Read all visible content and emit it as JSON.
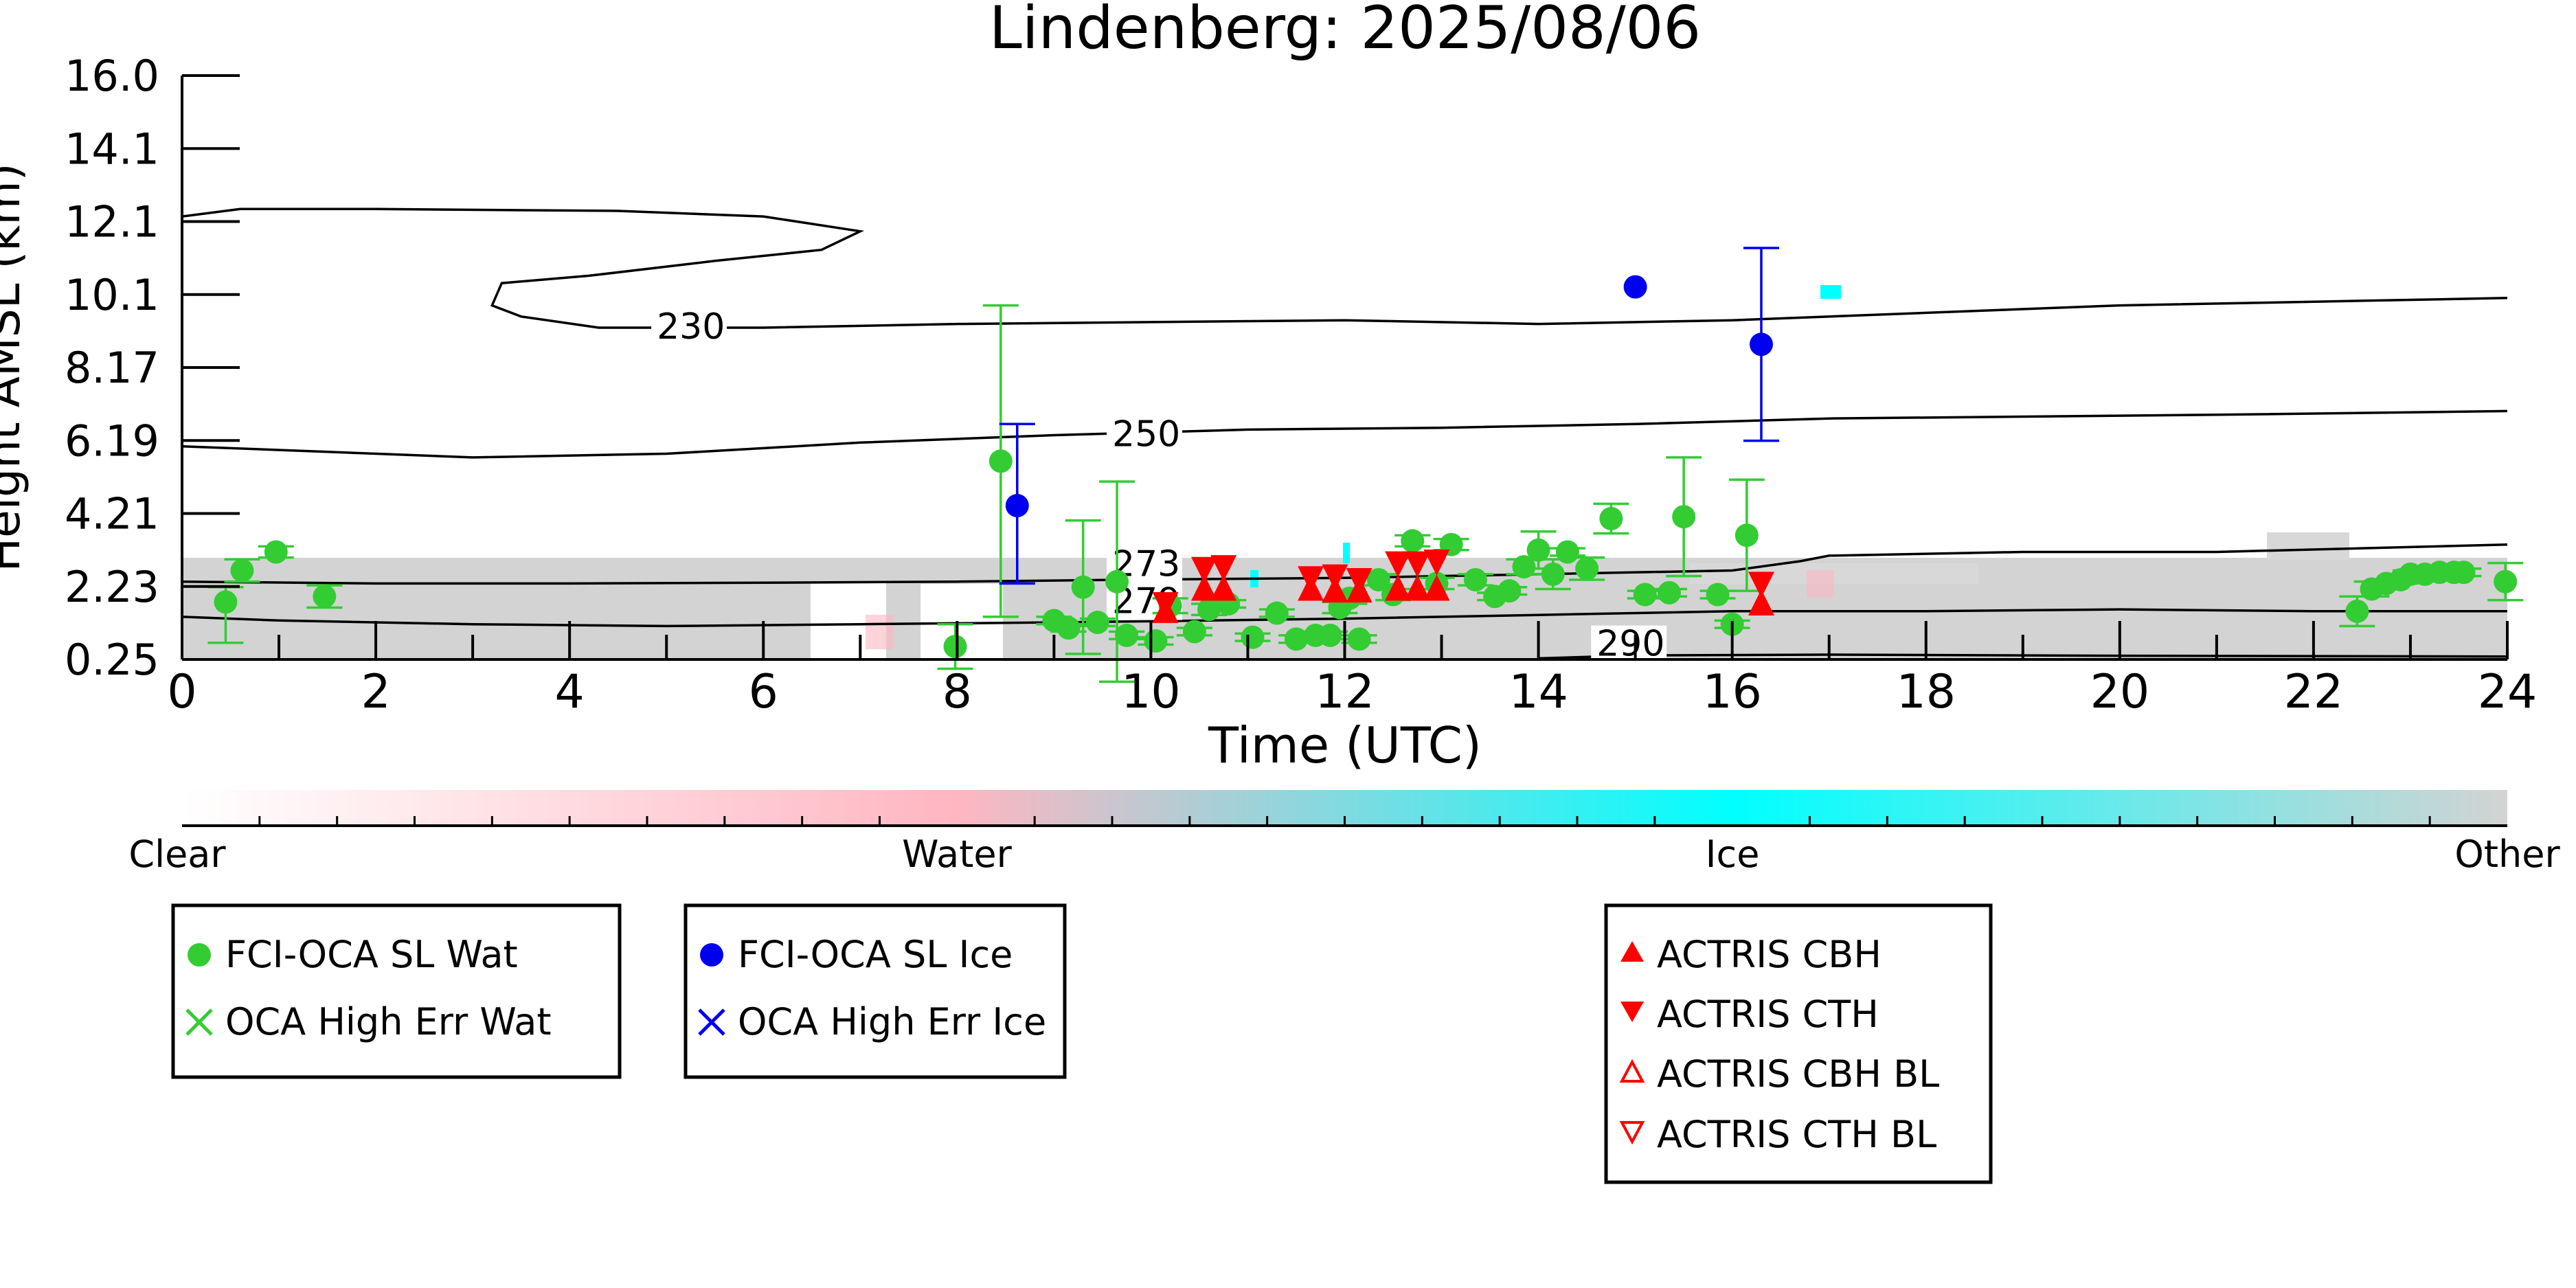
{
  "chart_data": {
    "type": "scatter",
    "title": "Lindenberg: 2025/08/06",
    "xlabel": "Time (UTC)",
    "ylabel": "Height AMSL (km)",
    "xlim": [
      0,
      24
    ],
    "ylim": [
      0.25,
      16.0
    ],
    "x_ticks": [
      "0",
      "2",
      "4",
      "6",
      "8",
      "10",
      "12",
      "14",
      "16",
      "18",
      "20",
      "22",
      "24"
    ],
    "y_ticks": [
      "0.25",
      "2.23",
      "4.21",
      "6.19",
      "8.17",
      "10.1",
      "12.1",
      "14.1",
      "16.0"
    ],
    "colorbar": {
      "labels": [
        "Clear",
        "Water",
        "Ice",
        "Other"
      ],
      "colors": [
        "#ffffff",
        "#ffb6c1",
        "#00ffff",
        "#d3d3d3"
      ]
    },
    "contours": [
      {
        "label": "230",
        "points": [
          [
            0,
            12.2
          ],
          [
            0.6,
            12.4
          ],
          [
            2,
            12.4
          ],
          [
            4.5,
            12.35
          ],
          [
            6,
            12.2
          ],
          [
            7.0,
            11.8
          ],
          [
            6.6,
            11.3
          ],
          [
            5.5,
            11.0
          ],
          [
            4.2,
            10.6
          ],
          [
            3.3,
            10.4
          ],
          [
            3.2,
            9.8
          ],
          [
            3.5,
            9.5
          ],
          [
            4.3,
            9.2
          ],
          [
            6,
            9.2
          ],
          [
            8,
            9.3
          ],
          [
            10,
            9.35
          ],
          [
            12,
            9.4
          ],
          [
            14,
            9.3
          ],
          [
            16,
            9.4
          ],
          [
            18,
            9.6
          ],
          [
            20,
            9.8
          ],
          [
            22,
            9.9
          ],
          [
            24,
            10.0
          ]
        ],
        "label_x": 4.9,
        "label_y": 8.9
      },
      {
        "label": "250",
        "points": [
          [
            0,
            6.0
          ],
          [
            1.5,
            5.85
          ],
          [
            3,
            5.7
          ],
          [
            5,
            5.8
          ],
          [
            7,
            6.1
          ],
          [
            9,
            6.3
          ],
          [
            11,
            6.45
          ],
          [
            13,
            6.5
          ],
          [
            15,
            6.6
          ],
          [
            17,
            6.75
          ],
          [
            19,
            6.8
          ],
          [
            21,
            6.85
          ],
          [
            24,
            6.95
          ]
        ],
        "label_x": 9.6,
        "label_y": 6.0
      },
      {
        "label": "273",
        "points": [
          [
            0,
            2.35
          ],
          [
            2,
            2.3
          ],
          [
            4,
            2.3
          ],
          [
            6,
            2.32
          ],
          [
            8,
            2.35
          ],
          [
            9.7,
            2.4
          ],
          [
            12,
            2.45
          ],
          [
            14,
            2.55
          ],
          [
            16,
            2.65
          ],
          [
            16.7,
            2.9
          ],
          [
            17,
            3.05
          ],
          [
            19,
            3.15
          ],
          [
            21,
            3.15
          ],
          [
            24,
            3.35
          ]
        ],
        "label_x": 9.6,
        "label_y": 2.5
      },
      {
        "label": "279",
        "points": [
          [
            0,
            1.4
          ],
          [
            1,
            1.3
          ],
          [
            3,
            1.2
          ],
          [
            5,
            1.15
          ],
          [
            7,
            1.2
          ],
          [
            9,
            1.25
          ],
          [
            10,
            1.28
          ],
          [
            12,
            1.35
          ],
          [
            14,
            1.45
          ],
          [
            16,
            1.55
          ],
          [
            18,
            1.55
          ],
          [
            20,
            1.6
          ],
          [
            22,
            1.55
          ],
          [
            24,
            1.55
          ]
        ],
        "label_x": 9.6,
        "label_y": 1.5
      },
      {
        "label": "290",
        "points": [
          [
            14.0,
            0.28
          ],
          [
            15.0,
            0.36
          ],
          [
            17,
            0.38
          ],
          [
            20,
            0.35
          ],
          [
            24,
            0.33
          ]
        ],
        "label_x": 14.6,
        "label_y": 0.35
      }
    ],
    "series": [
      {
        "name": "FCI-OCA SL Wat",
        "marker": "circle",
        "color": "#33cc33",
        "x": [
          0.45,
          0.62,
          0.97,
          1.47,
          7.98,
          8.45,
          9.0,
          9.15,
          9.3,
          9.45,
          9.65,
          9.75,
          10.05,
          10.2,
          10.45,
          10.6,
          10.8,
          11.05,
          11.3,
          11.5,
          11.7,
          11.85,
          11.95,
          12.05,
          12.15,
          12.35,
          12.5,
          12.7,
          12.95,
          13.1,
          13.35,
          13.55,
          13.7,
          13.85,
          14.0,
          14.15,
          14.3,
          14.5,
          14.75,
          15.1,
          15.35,
          15.5,
          15.85,
          16.0,
          16.15,
          22.45,
          22.6,
          22.75,
          22.9,
          23.0,
          23.15,
          23.3,
          23.45,
          23.55,
          23.98
        ],
        "y": [
          1.8,
          2.65,
          3.15,
          1.95,
          0.6,
          5.6,
          1.3,
          1.1,
          2.2,
          1.25,
          2.35,
          0.9,
          0.75,
          1.7,
          1.0,
          1.6,
          1.75,
          0.85,
          1.5,
          0.8,
          0.9,
          0.9,
          1.65,
          1.9,
          0.8,
          2.4,
          2.0,
          3.45,
          2.3,
          3.35,
          2.4,
          1.95,
          2.1,
          2.75,
          3.2,
          2.55,
          3.15,
          2.7,
          4.05,
          2.0,
          2.05,
          4.1,
          2.0,
          1.2,
          3.6,
          1.55,
          2.15,
          2.3,
          2.4,
          2.55,
          2.55,
          2.6,
          2.6,
          2.6,
          2.35
        ],
        "yerr": [
          [
            1.1,
            0.4
          ],
          [
            0.3,
            0.3
          ],
          [
            0.15,
            0.15
          ],
          [
            0.3,
            0.3
          ],
          [
            0.6,
            0.6
          ],
          [
            4.2,
            4.2
          ],
          [
            0.1,
            0.1
          ],
          [
            0.1,
            0.1
          ],
          [
            1.8,
            1.8
          ],
          [
            0.1,
            0.1
          ],
          [
            2.7,
            2.7
          ],
          [
            0.1,
            0.1
          ],
          [
            0.1,
            0.1
          ],
          [
            0.2,
            0.2
          ],
          [
            0.1,
            0.1
          ],
          [
            0.15,
            0.15
          ],
          [
            0.1,
            0.1
          ],
          [
            0.1,
            0.1
          ],
          [
            0.1,
            0.1
          ],
          [
            0.1,
            0.1
          ],
          [
            0.1,
            0.1
          ],
          [
            0.1,
            0.1
          ],
          [
            0.15,
            0.15
          ],
          [
            0.15,
            0.15
          ],
          [
            0.1,
            0.1
          ],
          [
            0.15,
            0.15
          ],
          [
            0.15,
            0.15
          ],
          [
            0.15,
            0.15
          ],
          [
            0.15,
            0.15
          ],
          [
            0.15,
            0.15
          ],
          [
            0.15,
            0.15
          ],
          [
            0.1,
            0.1
          ],
          [
            0.1,
            0.1
          ],
          [
            0.2,
            0.2
          ],
          [
            0.5,
            0.5
          ],
          [
            0.4,
            0.4
          ],
          [
            0.1,
            0.1
          ],
          [
            0.3,
            0.3
          ],
          [
            0.4,
            0.4
          ],
          [
            0.1,
            0.1
          ],
          [
            0.1,
            0.1
          ],
          [
            1.6,
            1.6
          ],
          [
            0.1,
            0.1
          ],
          [
            0.1,
            0.1
          ],
          [
            1.5,
            1.5
          ],
          [
            0.4,
            0.4
          ],
          [
            0.2,
            0.2
          ],
          [
            0.1,
            0.1
          ],
          [
            0.1,
            0.1
          ],
          [
            0.1,
            0.1
          ],
          [
            0.1,
            0.1
          ],
          [
            0.1,
            0.1
          ],
          [
            0.1,
            0.1
          ],
          [
            0.1,
            0.1
          ],
          [
            0.5,
            0.5
          ]
        ]
      },
      {
        "name": "OCA High Err Wat",
        "marker": "x",
        "color": "#33cc33",
        "x": [],
        "y": []
      },
      {
        "name": "FCI-OCA SL Ice",
        "marker": "circle",
        "color": "#0000ee",
        "x": [
          8.62,
          15.0,
          16.3
        ],
        "y": [
          4.4,
          10.3,
          8.75
        ],
        "yerr": [
          [
            2.1,
            2.2
          ],
          [
            0,
            0
          ],
          [
            2.6,
            2.6
          ]
        ]
      },
      {
        "name": "OCA High Err Ice",
        "marker": "x",
        "color": "#0000ee",
        "x": [],
        "y": []
      },
      {
        "name": "ACTRIS CBH",
        "marker": "triangle-up",
        "color": "#ff0000",
        "x": [
          10.15,
          10.55,
          10.75,
          11.65,
          11.9,
          12.15,
          12.55,
          12.75,
          12.95,
          16.3
        ],
        "y": [
          1.55,
          2.15,
          2.15,
          2.15,
          2.1,
          2.1,
          2.15,
          2.15,
          2.15,
          1.75
        ]
      },
      {
        "name": "ACTRIS CTH",
        "marker": "triangle-down",
        "color": "#ff0000",
        "x": [
          10.15,
          10.55,
          10.75,
          11.65,
          11.9,
          12.15,
          12.55,
          12.75,
          12.95,
          16.3
        ],
        "y": [
          1.75,
          2.7,
          2.75,
          2.45,
          2.5,
          2.4,
          2.85,
          2.85,
          2.9,
          2.3
        ]
      },
      {
        "name": "ACTRIS CBH BL",
        "marker": "triangle-up-open",
        "color": "#ff0000",
        "x": [],
        "y": []
      },
      {
        "name": "ACTRIS CTH BL",
        "marker": "triangle-down-open",
        "color": "#ff0000",
        "x": [],
        "y": []
      }
    ],
    "legends": [
      [
        "FCI-OCA SL Wat",
        "OCA High Err Wat"
      ],
      [
        "FCI-OCA SL Ice",
        "OCA High Err Ice"
      ],
      [
        "ACTRIS CBH",
        "ACTRIS CTH",
        "ACTRIS CBH BL",
        "ACTRIS CTH BL"
      ]
    ]
  }
}
